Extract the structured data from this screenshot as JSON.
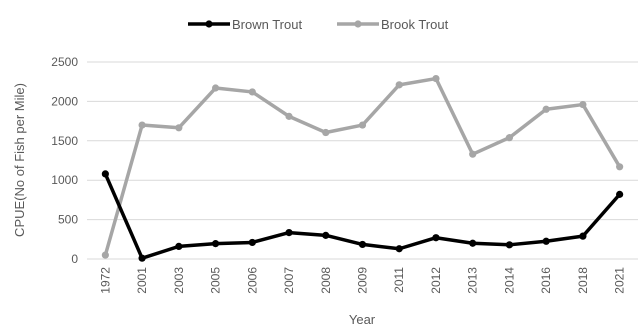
{
  "chart_data": {
    "type": "line",
    "title": "",
    "xlabel": "Year",
    "ylabel": "CPUE(No of Fish per Mile)",
    "categories": [
      "1972",
      "2001",
      "2003",
      "2005",
      "2006",
      "2007",
      "2008",
      "2009",
      "2011",
      "2012",
      "2013",
      "2014",
      "2016",
      "2018",
      "2021"
    ],
    "ylim": [
      0,
      2500
    ],
    "yticks": [
      0,
      500,
      1000,
      1500,
      2000,
      2500
    ],
    "grid": true,
    "legend_position": "top",
    "series": [
      {
        "name": "Brown Trout",
        "color": "#000000",
        "values": [
          1080,
          10,
          160,
          195,
          210,
          335,
          300,
          185,
          130,
          270,
          200,
          180,
          225,
          290,
          820
        ]
      },
      {
        "name": "Brook Trout",
        "color": "#a6a6a6",
        "values": [
          50,
          1700,
          1665,
          2170,
          2120,
          1810,
          1605,
          1700,
          2210,
          2290,
          1330,
          1540,
          1900,
          1960,
          1170
        ]
      }
    ]
  }
}
